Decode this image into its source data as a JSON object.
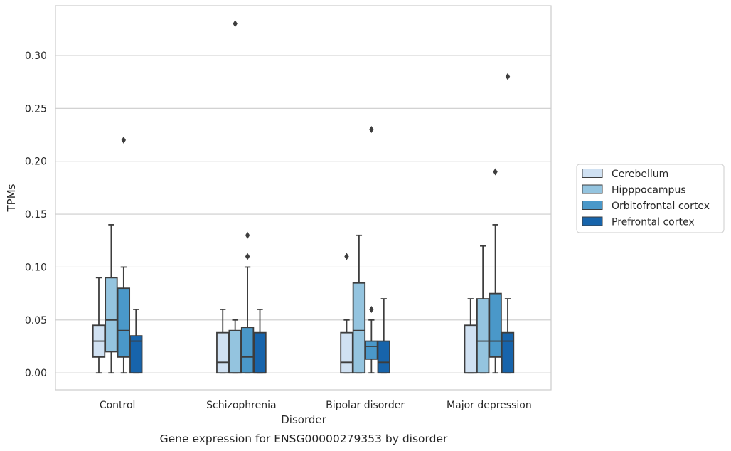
{
  "chart_data": {
    "type": "boxplot",
    "title": "Gene expression for ENSG00000279353 by disorder",
    "xlabel": "Disorder",
    "ylabel": "TPMs",
    "ylim": [
      -0.016,
      0.347
    ],
    "yticks": [
      0.0,
      0.05,
      0.1,
      0.15,
      0.2,
      0.25,
      0.3
    ],
    "ytick_labels": [
      "0.00",
      "0.05",
      "0.10",
      "0.15",
      "0.20",
      "0.25",
      "0.30"
    ],
    "grid": "horizontal",
    "legend_position": "right",
    "categories": [
      "Control",
      "Schizophrenia",
      "Bipolar disorder",
      "Major depression"
    ],
    "series": [
      {
        "name": "Cerebellum",
        "color": "#d0e1f2",
        "boxes": [
          {
            "whislo": 0.0,
            "q1": 0.015,
            "med": 0.03,
            "q3": 0.045,
            "whishi": 0.09,
            "fliers": []
          },
          {
            "whislo": 0.0,
            "q1": 0.0,
            "med": 0.01,
            "q3": 0.038,
            "whishi": 0.06,
            "fliers": []
          },
          {
            "whislo": 0.0,
            "q1": 0.0,
            "med": 0.01,
            "q3": 0.038,
            "whishi": 0.05,
            "fliers": [
              0.11
            ]
          },
          {
            "whislo": 0.0,
            "q1": 0.0,
            "med": 0.0,
            "q3": 0.045,
            "whishi": 0.07,
            "fliers": []
          }
        ]
      },
      {
        "name": "Hipppocampus",
        "color": "#94c4df",
        "boxes": [
          {
            "whislo": 0.0,
            "q1": 0.02,
            "med": 0.05,
            "q3": 0.09,
            "whishi": 0.14,
            "fliers": []
          },
          {
            "whislo": 0.0,
            "q1": 0.0,
            "med": 0.0,
            "q3": 0.04,
            "whishi": 0.05,
            "fliers": [
              0.33
            ]
          },
          {
            "whislo": 0.0,
            "q1": 0.0,
            "med": 0.04,
            "q3": 0.085,
            "whishi": 0.13,
            "fliers": []
          },
          {
            "whislo": 0.0,
            "q1": 0.0,
            "med": 0.03,
            "q3": 0.07,
            "whishi": 0.12,
            "fliers": []
          }
        ]
      },
      {
        "name": "Orbitofrontal cortex",
        "color": "#4a98c9",
        "boxes": [
          {
            "whislo": 0.0,
            "q1": 0.015,
            "med": 0.04,
            "q3": 0.08,
            "whishi": 0.1,
            "fliers": [
              0.22
            ]
          },
          {
            "whislo": 0.0,
            "q1": 0.0,
            "med": 0.015,
            "q3": 0.043,
            "whishi": 0.1,
            "fliers": [
              0.11,
              0.13
            ]
          },
          {
            "whislo": 0.0,
            "q1": 0.013,
            "med": 0.025,
            "q3": 0.03,
            "whishi": 0.05,
            "fliers": [
              0.06,
              0.23
            ]
          },
          {
            "whislo": 0.0,
            "q1": 0.015,
            "med": 0.03,
            "q3": 0.075,
            "whishi": 0.14,
            "fliers": [
              0.19
            ]
          }
        ]
      },
      {
        "name": "Prefrontal cortex",
        "color": "#1764ab",
        "boxes": [
          {
            "whislo": 0.0,
            "q1": 0.0,
            "med": 0.03,
            "q3": 0.035,
            "whishi": 0.06,
            "fliers": []
          },
          {
            "whislo": 0.0,
            "q1": 0.0,
            "med": 0.0,
            "q3": 0.038,
            "whishi": 0.06,
            "fliers": []
          },
          {
            "whislo": 0.0,
            "q1": 0.0,
            "med": 0.01,
            "q3": 0.03,
            "whishi": 0.07,
            "fliers": []
          },
          {
            "whislo": 0.0,
            "q1": 0.0,
            "med": 0.03,
            "q3": 0.038,
            "whishi": 0.07,
            "fliers": [
              0.28
            ]
          }
        ]
      }
    ]
  }
}
